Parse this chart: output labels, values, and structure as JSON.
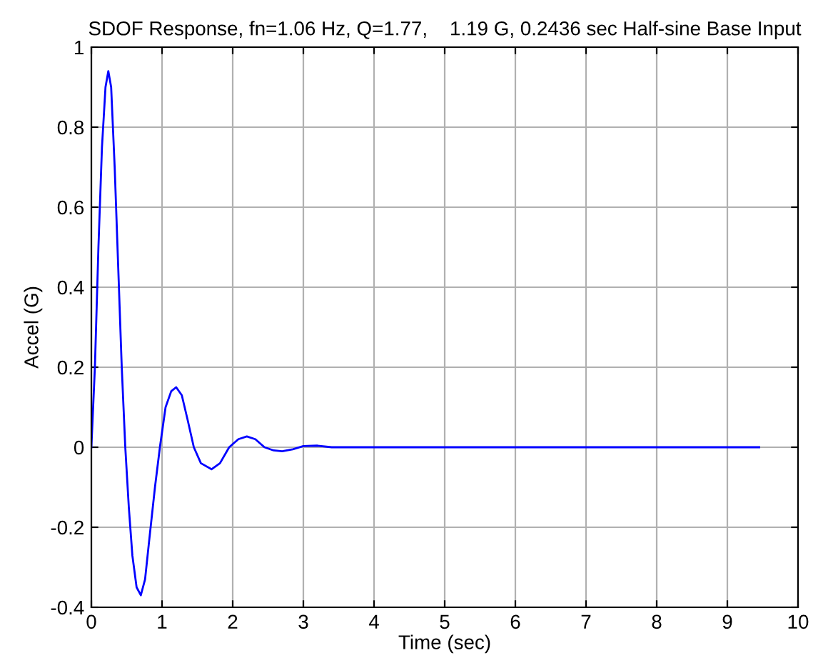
{
  "chart_data": {
    "type": "line",
    "title": "SDOF Response, fn=1.06 Hz, Q=1.77,    1.19 G, 0.2436 sec Half-sine Base Input",
    "xlabel": "Time (sec)",
    "ylabel": "Accel (G)",
    "series": [
      {
        "color": "#0000ff",
        "x": [
          0,
          0.05,
          0.1,
          0.15,
          0.2,
          0.24,
          0.28,
          0.33,
          0.38,
          0.43,
          0.48,
          0.53,
          0.58,
          0.64,
          0.7,
          0.76,
          0.82,
          0.9,
          0.97,
          1.05,
          1.13,
          1.2,
          1.28,
          1.36,
          1.45,
          1.55,
          1.7,
          1.82,
          1.95,
          2.08,
          2.2,
          2.32,
          2.45,
          2.58,
          2.7,
          2.85,
          3.0,
          3.2,
          3.4,
          9.45
        ],
        "values": [
          0,
          0.2,
          0.5,
          0.75,
          0.9,
          0.94,
          0.9,
          0.7,
          0.45,
          0.2,
          0,
          -0.15,
          -0.27,
          -0.35,
          -0.37,
          -0.33,
          -0.23,
          -0.1,
          0,
          0.1,
          0.14,
          0.15,
          0.13,
          0.07,
          0,
          -0.04,
          -0.055,
          -0.04,
          0,
          0.02,
          0.027,
          0.02,
          0,
          -0.008,
          -0.01,
          -0.005,
          0.003,
          0.004,
          0,
          0
        ]
      }
    ],
    "xlim": [
      0,
      10
    ],
    "xticks": [
      0,
      1,
      2,
      3,
      4,
      5,
      6,
      7,
      8,
      9,
      10
    ],
    "ylim": [
      -0.4,
      1
    ],
    "yticks": [
      -0.4,
      -0.2,
      0,
      0.2,
      0.4,
      0.6,
      0.8,
      1
    ],
    "grid": true,
    "marker": "none",
    "line_style": "solid"
  }
}
